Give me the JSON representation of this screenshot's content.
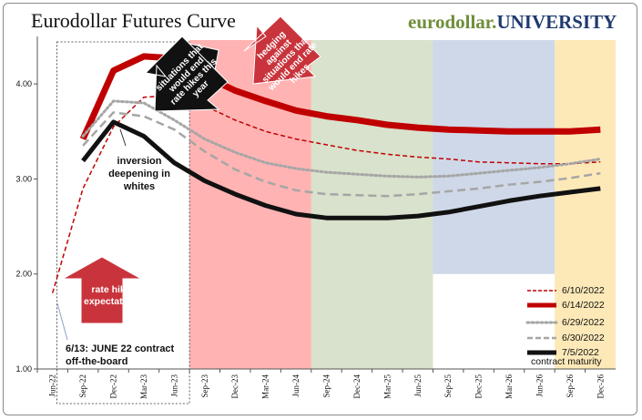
{
  "title": "Eurodollar Futures Curve",
  "brand": {
    "part1": "eurodollar.",
    "part2": "UNIVERSITY"
  },
  "colors": {
    "band_red": "#ffb3b3",
    "band_green": "#d8e2cc",
    "band_blue": "#cfd8e8",
    "band_yellow": "#fde9b8",
    "series_red": "#c00000",
    "series_gray": "#a6a6a6",
    "series_black": "#111111",
    "arrow_red": "#c9343c"
  },
  "annotations": {
    "inversion": "inversion deepening in whites",
    "june_contract": "6/13: JUNE 22 contract off-the-board",
    "rate_hike": "rate hike expectations",
    "situations_this_year": "situations that would end rate hikes this year",
    "hedging": "hedging against situations that would end rate hikes"
  },
  "chart_data": {
    "type": "line",
    "title": "Eurodollar Futures Curve",
    "xlabel": "contract maturity",
    "ylabel": "",
    "ylim": [
      1.0,
      4.5
    ],
    "yticks": [
      1.0,
      2.0,
      3.0,
      4.0
    ],
    "categories": [
      "Jun-22",
      "Sep-22",
      "Dec-22",
      "Mar-23",
      "Jun-23",
      "Sep-23",
      "Dec-23",
      "Mar-24",
      "Jun-24",
      "Sep-24",
      "Dec-24",
      "Mar-25",
      "Jun-25",
      "Sep-25",
      "Dec-25",
      "Mar-26",
      "Jun-26",
      "Sep-26",
      "Dec-26"
    ],
    "legend_position": "bottom-right",
    "grid": false,
    "shaded_regions": [
      {
        "from": "Sep-23",
        "to": "Jun-24",
        "color": "#ffb3b3"
      },
      {
        "from": "Sep-24",
        "to": "Jun-25",
        "color": "#d8e2cc"
      },
      {
        "from": "Sep-25",
        "to": "Jun-26",
        "color": "#cfd8e8"
      },
      {
        "from": "Sep-26",
        "to": "Dec-26",
        "color": "#fde9b8"
      }
    ],
    "series": [
      {
        "name": "6/10/2022",
        "style": "dashed",
        "color": "#c00000",
        "width": 1.5,
        "values": [
          1.8,
          2.9,
          3.55,
          3.86,
          3.88,
          3.77,
          3.62,
          3.5,
          3.42,
          3.36,
          3.3,
          3.26,
          3.23,
          3.21,
          3.18,
          3.17,
          3.16,
          3.16,
          3.18
        ]
      },
      {
        "name": "6/14/2022",
        "style": "solid",
        "color": "#c00000",
        "width": 7,
        "values": [
          null,
          3.42,
          4.14,
          4.29,
          4.27,
          4.08,
          3.93,
          3.82,
          3.72,
          3.66,
          3.62,
          3.57,
          3.54,
          3.52,
          3.51,
          3.5,
          3.5,
          3.5,
          3.52
        ]
      },
      {
        "name": "6/29/2022",
        "style": "dotted",
        "color": "#a6a6a6",
        "width": 3,
        "values": [
          null,
          3.45,
          3.82,
          3.8,
          3.62,
          3.42,
          3.28,
          3.17,
          3.11,
          3.07,
          3.05,
          3.03,
          3.02,
          3.03,
          3.06,
          3.09,
          3.12,
          3.16,
          3.21
        ]
      },
      {
        "name": "6/30/2022",
        "style": "dashed",
        "color": "#a6a6a6",
        "width": 2.5,
        "values": [
          null,
          3.35,
          3.7,
          3.66,
          3.52,
          3.29,
          3.1,
          2.97,
          2.88,
          2.84,
          2.83,
          2.82,
          2.84,
          2.87,
          2.9,
          2.94,
          2.97,
          3.01,
          3.06
        ]
      },
      {
        "name": "7/5/2022",
        "style": "solid",
        "color": "#111111",
        "width": 5,
        "values": [
          null,
          3.19,
          3.6,
          3.45,
          3.17,
          2.98,
          2.84,
          2.72,
          2.63,
          2.59,
          2.59,
          2.59,
          2.61,
          2.65,
          2.71,
          2.77,
          2.82,
          2.86,
          2.9
        ]
      }
    ]
  }
}
